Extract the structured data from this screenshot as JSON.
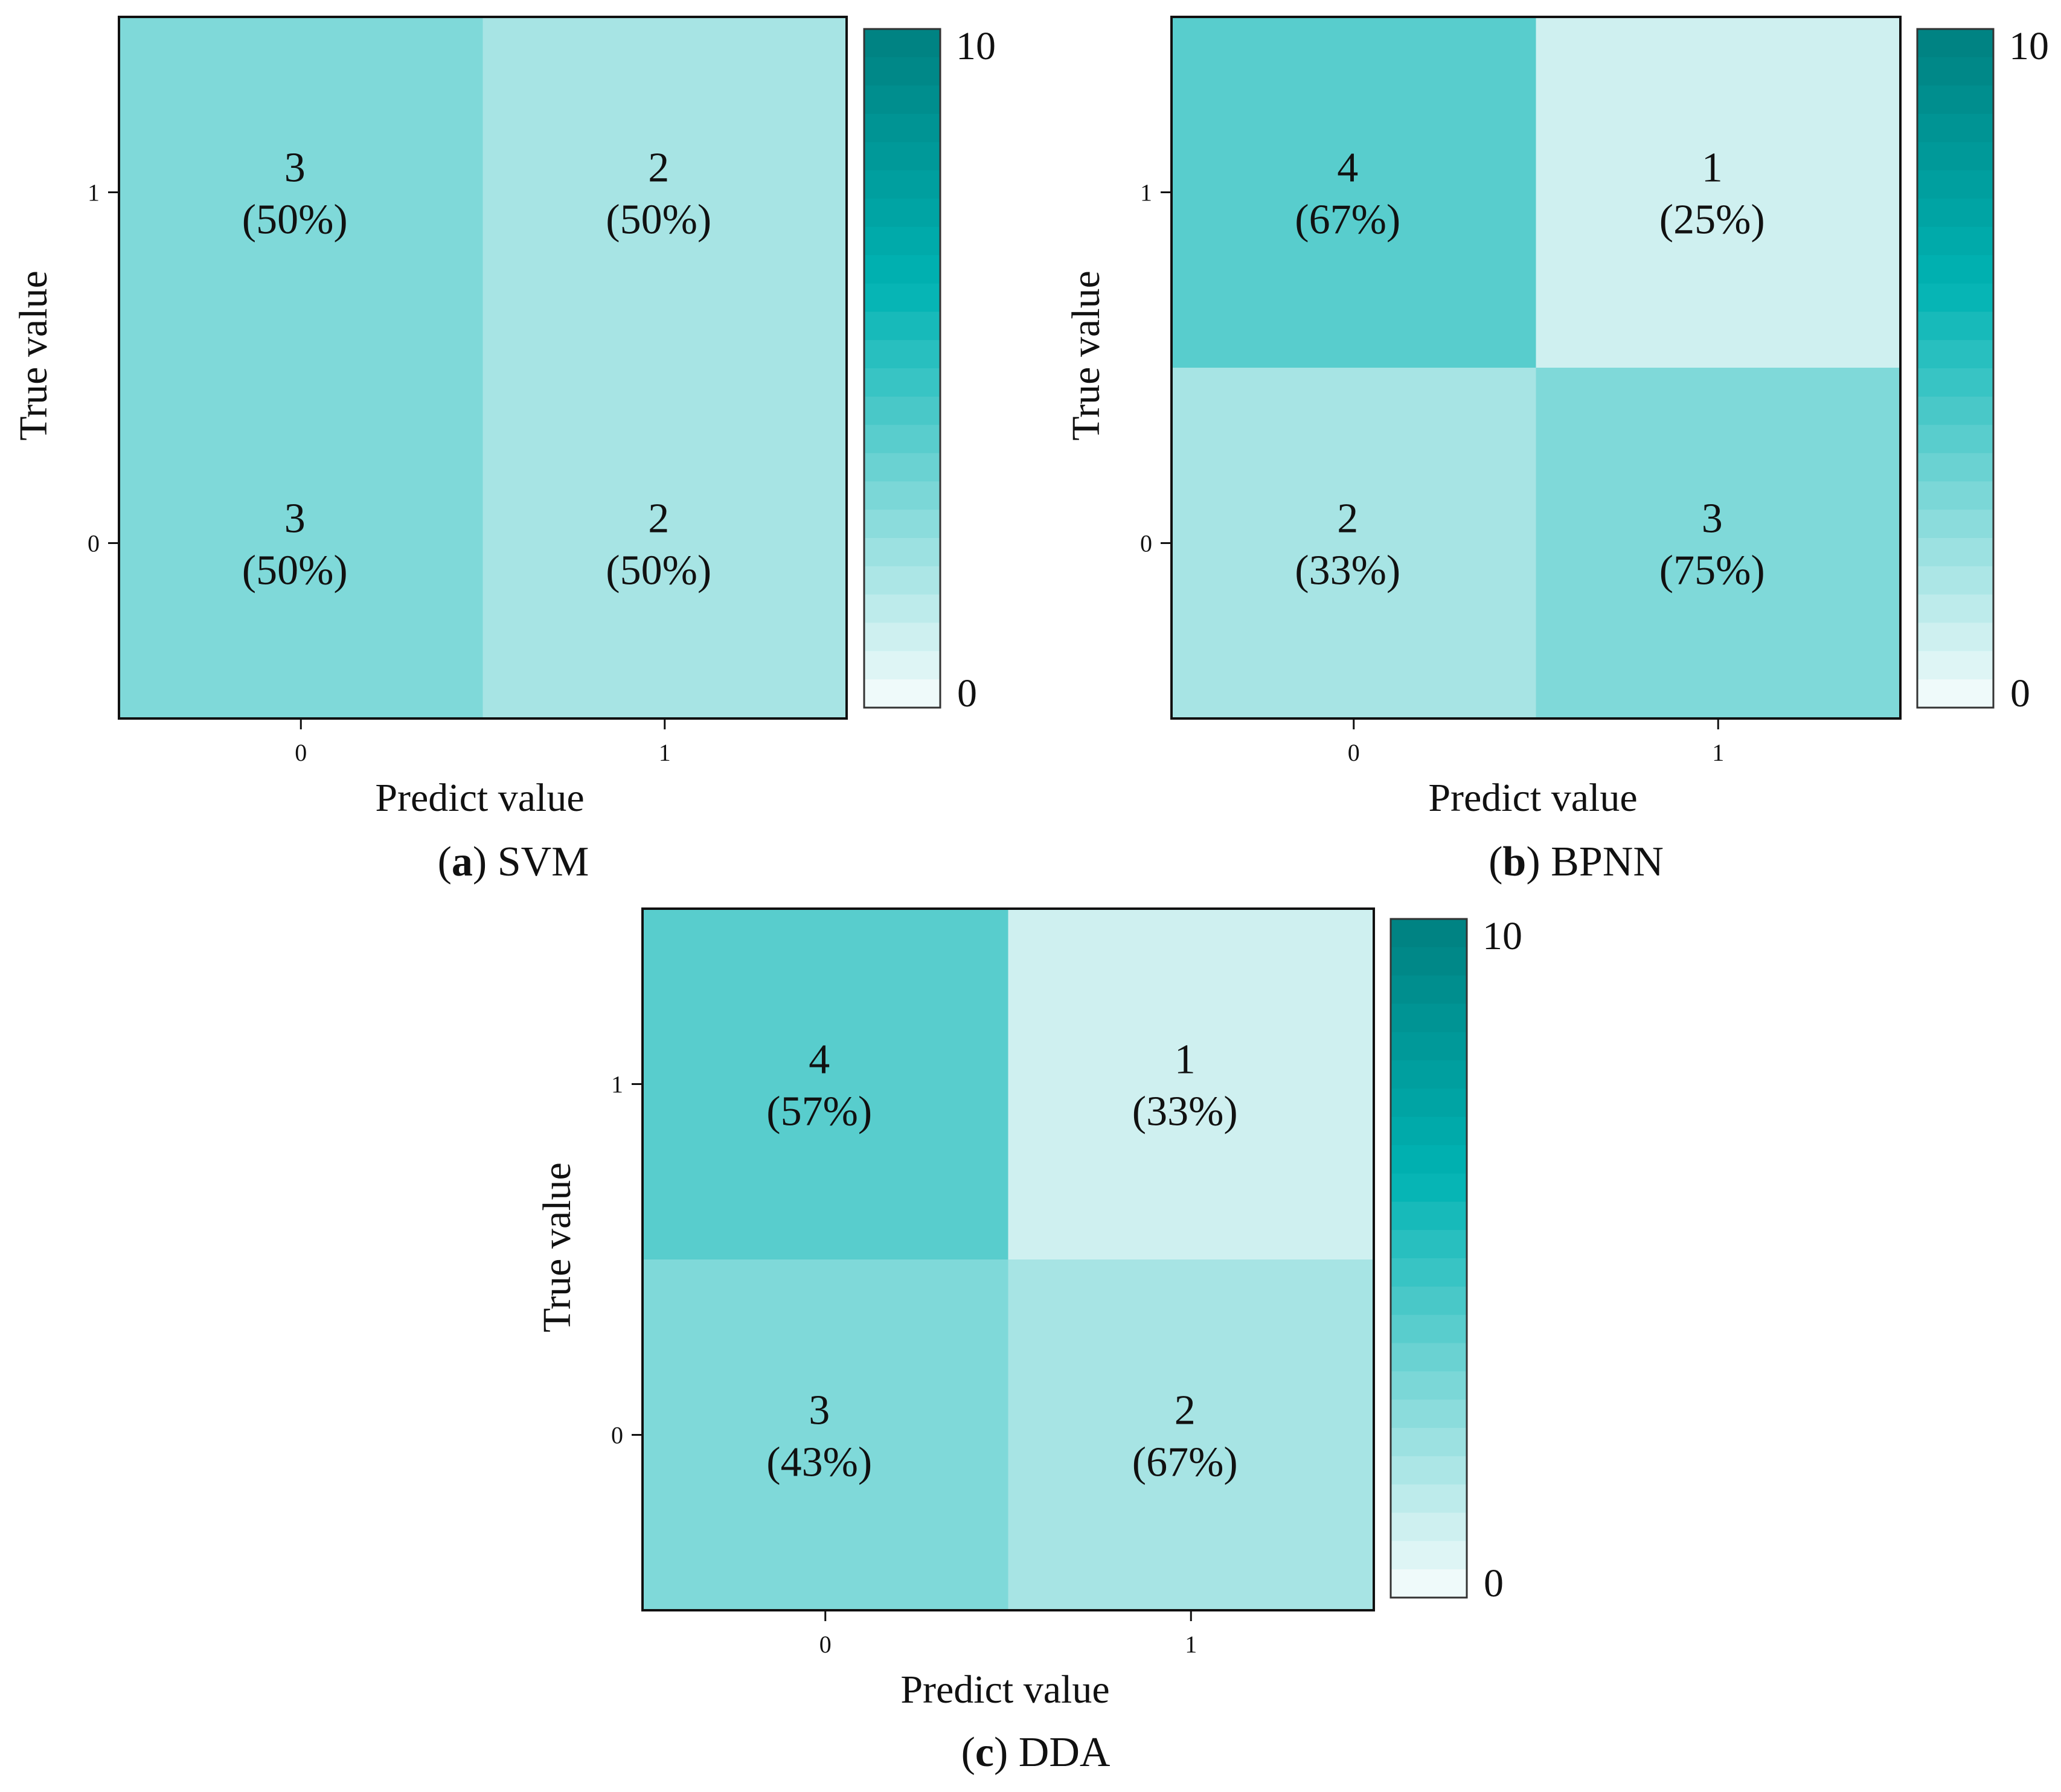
{
  "color_scale": {
    "min": 0,
    "max": 10,
    "low_color": "#f7fcfc",
    "mid_color": "#00b3b3",
    "high_color": "#008080"
  },
  "chart_data": [
    {
      "type": "heatmap",
      "panel_letter": "a",
      "panel_name": "SVM",
      "xlabel": "Predict value",
      "ylabel": "True value",
      "x_categories": [
        "0",
        "1"
      ],
      "y_categories": [
        "1",
        "0"
      ],
      "values": [
        [
          3,
          2
        ],
        [
          3,
          2
        ]
      ],
      "annotations": [
        [
          "(50%)",
          "(50%)"
        ],
        [
          "(50%)",
          "(50%)"
        ]
      ],
      "colorbar_range": [
        0,
        10
      ],
      "colorbar_ticks": [
        "0",
        "10"
      ]
    },
    {
      "type": "heatmap",
      "panel_letter": "b",
      "panel_name": "BPNN",
      "xlabel": "Predict value",
      "ylabel": "True value",
      "x_categories": [
        "0",
        "1"
      ],
      "y_categories": [
        "1",
        "0"
      ],
      "values": [
        [
          4,
          1
        ],
        [
          2,
          3
        ]
      ],
      "annotations": [
        [
          "(67%)",
          "(25%)"
        ],
        [
          "(33%)",
          "(75%)"
        ]
      ],
      "colorbar_range": [
        0,
        10
      ],
      "colorbar_ticks": [
        "0",
        "10"
      ]
    },
    {
      "type": "heatmap",
      "panel_letter": "c",
      "panel_name": "DDA",
      "xlabel": "Predict value",
      "ylabel": "True value",
      "x_categories": [
        "0",
        "1"
      ],
      "y_categories": [
        "1",
        "0"
      ],
      "values": [
        [
          4,
          1
        ],
        [
          3,
          2
        ]
      ],
      "annotations": [
        [
          "(57%)",
          "(33%)"
        ],
        [
          "(43%)",
          "(67%)"
        ]
      ],
      "colorbar_range": [
        0,
        10
      ],
      "colorbar_ticks": [
        "0",
        "10"
      ]
    }
  ]
}
